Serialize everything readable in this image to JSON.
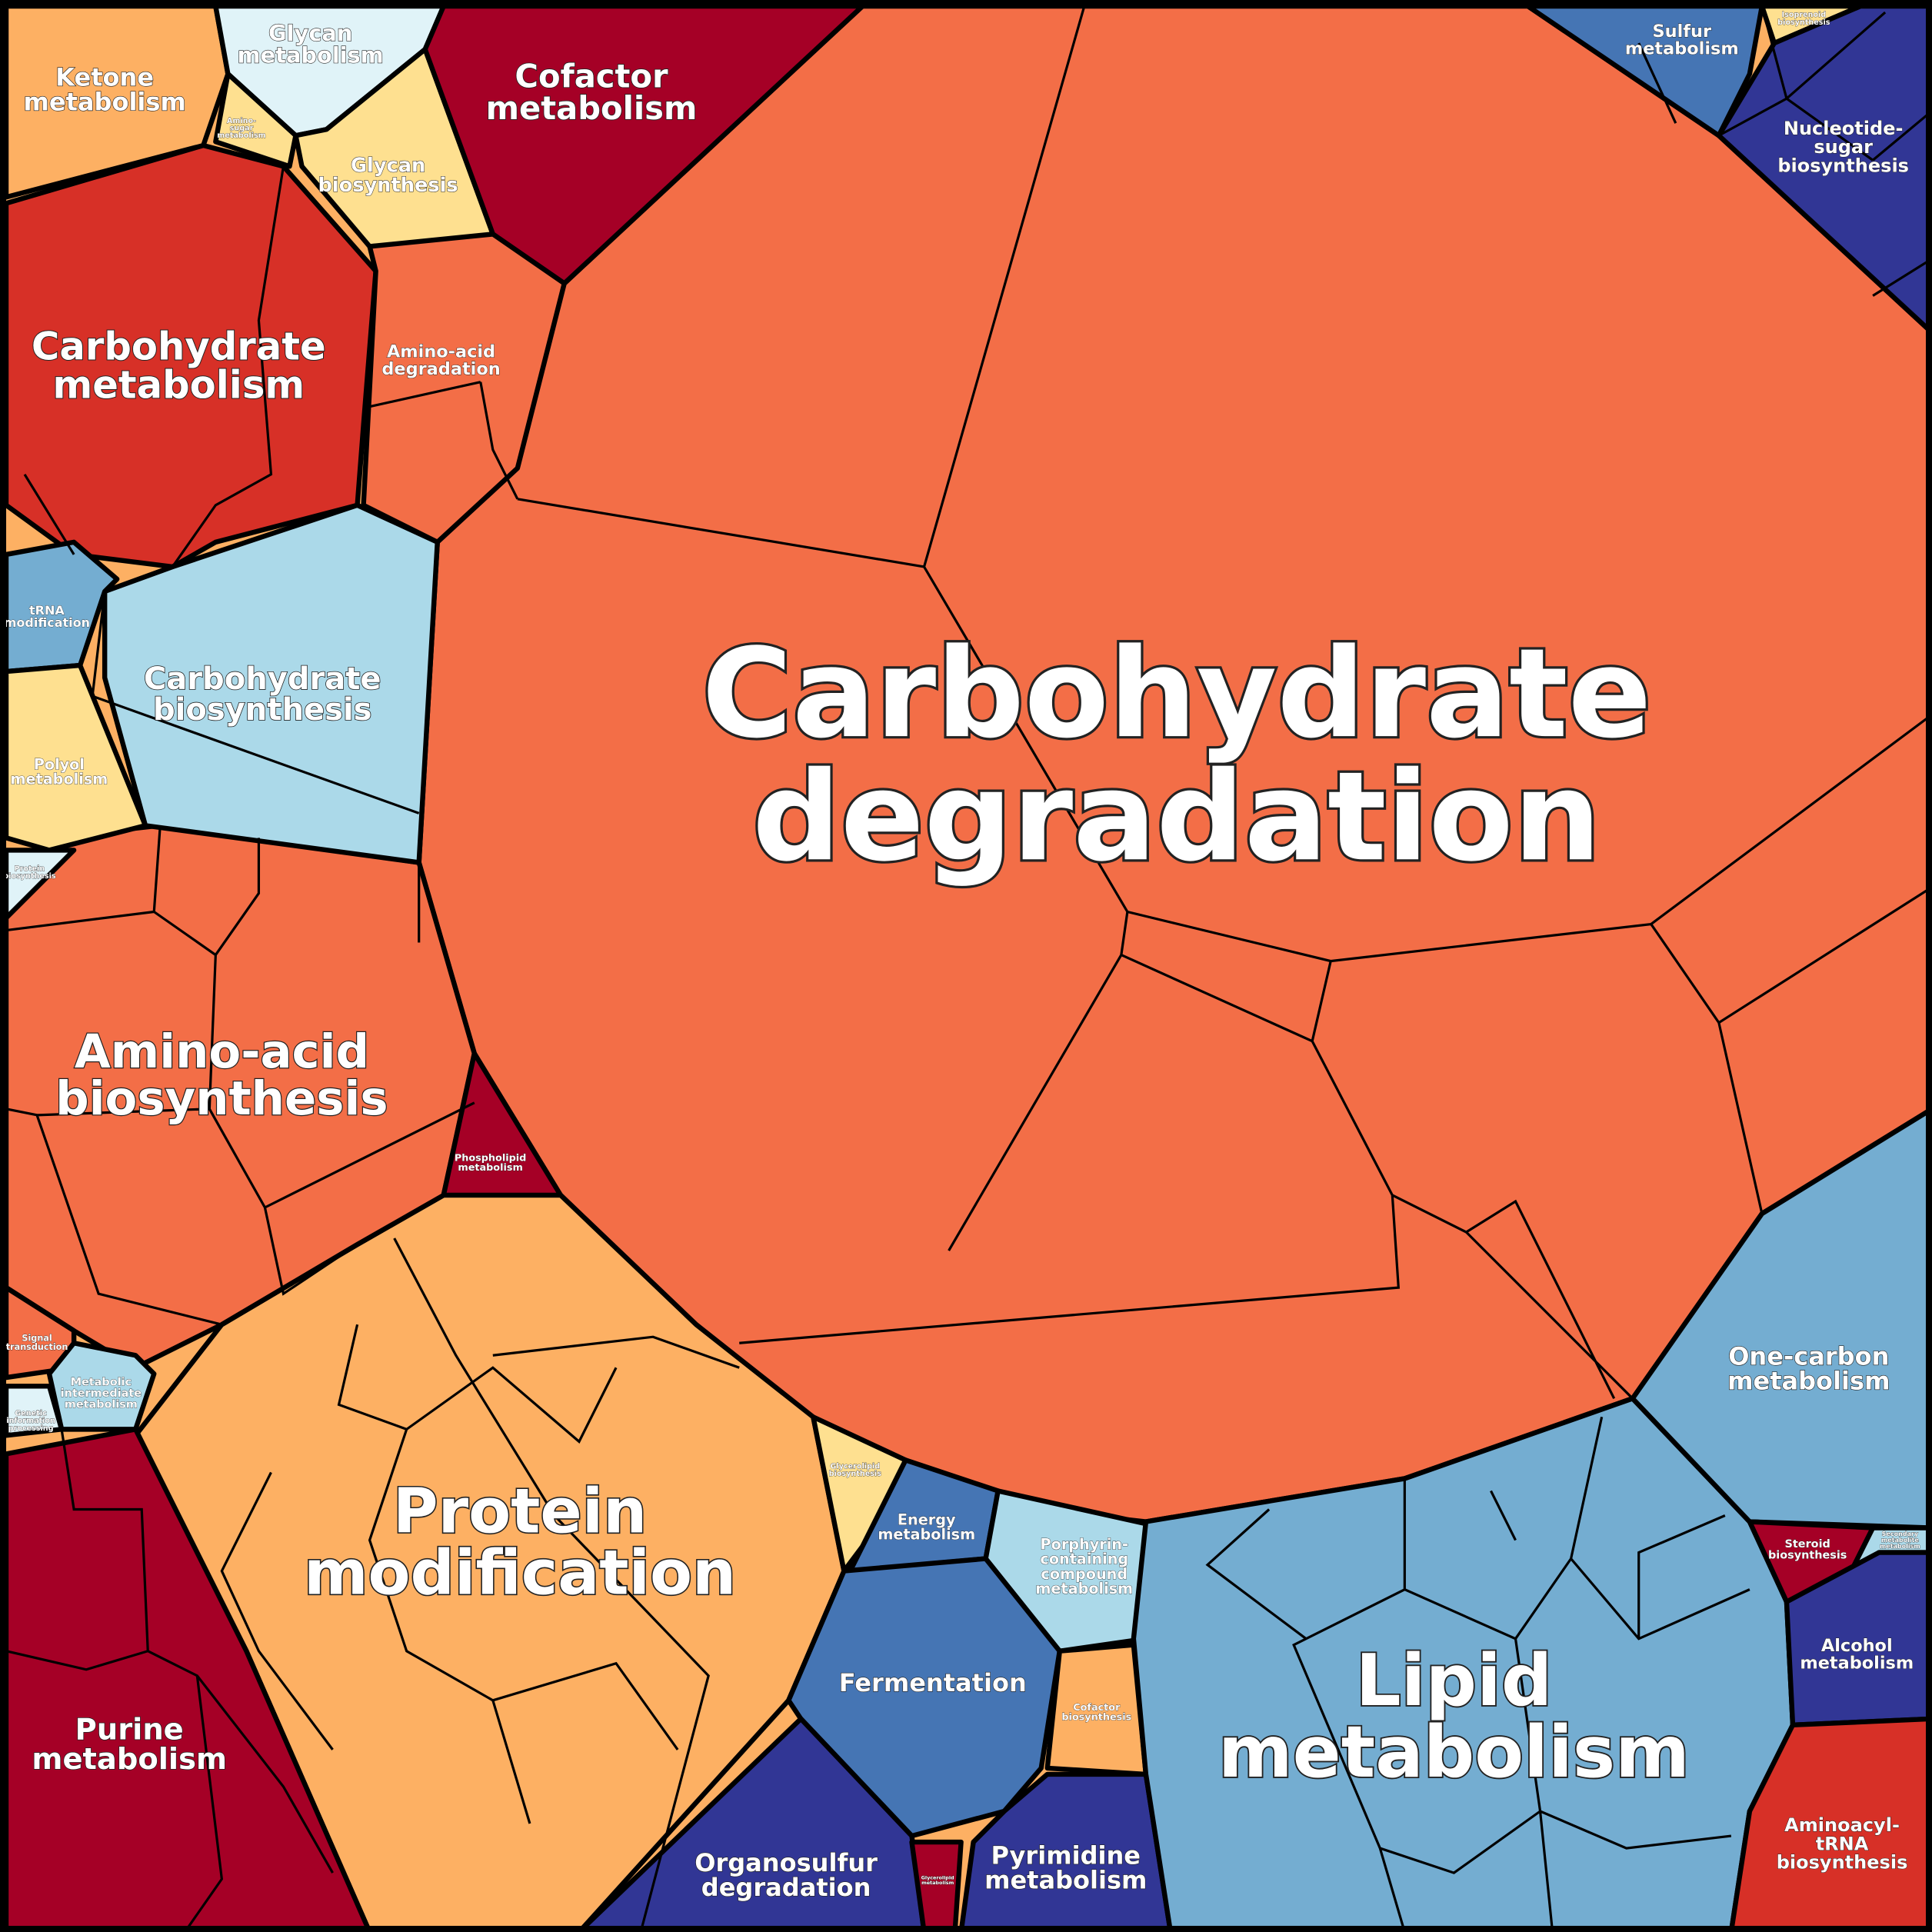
{
  "regions": [
    {
      "label": [
        "Carbohydrate",
        "degradation"
      ]
    },
    {
      "label": [
        "Protein",
        "modification"
      ]
    },
    {
      "label": [
        "Purine",
        "metabolism"
      ]
    },
    {
      "label": [
        "Amino-acid",
        "biosynthesis"
      ]
    },
    {
      "label": [
        "Carbohydrate",
        "metabolism"
      ]
    },
    {
      "label": [
        "Ketone",
        "metabolism"
      ]
    },
    {
      "label": [
        "Glycan",
        "metabolism"
      ]
    },
    {
      "label": [
        "Amino-",
        "sugar",
        "metabolism"
      ]
    },
    {
      "label": [
        "Glycan",
        "biosynthesis"
      ]
    },
    {
      "label": [
        "Cofactor",
        "metabolism"
      ]
    },
    {
      "label": [
        "Amino-acid",
        "degradation"
      ]
    },
    {
      "label": [
        "Carbohydrate",
        "biosynthesis"
      ]
    },
    {
      "label": [
        "tRNA",
        "modification"
      ]
    },
    {
      "label": [
        "Polyol",
        "metabolism"
      ]
    },
    {
      "label": [
        "Protein",
        "biosynthesis"
      ]
    },
    {
      "label": [
        "Phospholipid",
        "metabolism"
      ]
    },
    {
      "label": [
        "Signal",
        "transduction"
      ]
    },
    {
      "label": [
        "Metabolic",
        "intermediate",
        "metabolism"
      ]
    },
    {
      "label": [
        "Genetic",
        "information",
        "processing"
      ]
    },
    {
      "label": [
        "Glycerolipid",
        "biosynthesis"
      ]
    },
    {
      "label": [
        "Energy",
        "metabolism"
      ]
    },
    {
      "label": [
        "Porphyrin-",
        "containing",
        "compound",
        "metabolism"
      ]
    },
    {
      "label": [
        "Fermentation"
      ]
    },
    {
      "label": [
        "Cofactor",
        "biosynthesis"
      ]
    },
    {
      "label": [
        "Organosulfur",
        "degradation"
      ]
    },
    {
      "label": [
        "Glycerolipid",
        "metabolism"
      ]
    },
    {
      "label": [
        "Pyrimidine",
        "metabolism"
      ]
    },
    {
      "label": [
        "Lipid",
        "metabolism"
      ]
    },
    {
      "label": [
        "One-carbon",
        "metabolism"
      ]
    },
    {
      "label": [
        "Steroid",
        "biosynthesis"
      ]
    },
    {
      "label": [
        "Secondary",
        "metabolite",
        "metabolism"
      ]
    },
    {
      "label": [
        "Alcohol",
        "metabolism"
      ]
    },
    {
      "label": [
        "Aminoacyl-",
        "tRNA",
        "biosynthesis"
      ]
    },
    {
      "label": [
        "Sulfur",
        "metabolism"
      ]
    },
    {
      "label": [
        "Isoprenoid",
        "biosynthesis"
      ]
    },
    {
      "label": [
        "Nucleotide-",
        "sugar",
        "biosynthesis"
      ]
    }
  ]
}
